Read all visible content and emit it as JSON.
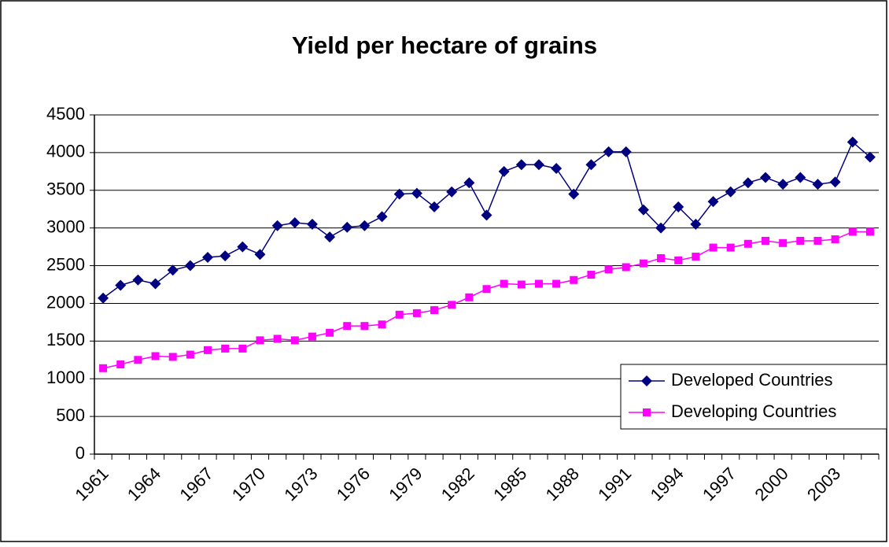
{
  "chart_data": {
    "type": "line",
    "title": "Yield per hectare of grains",
    "categories": [
      "1961",
      null,
      null,
      "1964",
      null,
      null,
      "1967",
      null,
      null,
      "1970",
      null,
      null,
      "1973",
      null,
      null,
      "1976",
      null,
      null,
      "1979",
      null,
      null,
      "1982",
      null,
      null,
      "1985",
      null,
      null,
      "1988",
      null,
      null,
      "1991",
      null,
      null,
      "1994",
      null,
      null,
      "1997",
      null,
      null,
      "2000",
      null,
      null,
      "2003",
      null,
      null
    ],
    "series": [
      {
        "name": "Developed Countries",
        "color": "#000080",
        "marker": "diamond",
        "values": [
          2070,
          2240,
          2310,
          2260,
          2440,
          2500,
          2610,
          2630,
          2750,
          2650,
          3030,
          3070,
          3050,
          2880,
          3010,
          3030,
          3150,
          3450,
          3460,
          3280,
          3480,
          3600,
          3170,
          3750,
          3840,
          3840,
          3790,
          3450,
          3840,
          4010,
          4010,
          3240,
          3000,
          3280,
          3050,
          3350,
          3480,
          3600,
          3670,
          3580,
          3670,
          3580,
          3610,
          4140,
          3940
        ]
      },
      {
        "name": "Developing Countries",
        "color": "#ff00ff",
        "marker": "square",
        "values": [
          1140,
          1190,
          1250,
          1300,
          1290,
          1320,
          1380,
          1400,
          1400,
          1510,
          1530,
          1510,
          1560,
          1610,
          1700,
          1700,
          1720,
          1850,
          1870,
          1910,
          1980,
          2080,
          2190,
          2260,
          2250,
          2260,
          2260,
          2310,
          2380,
          2450,
          2480,
          2530,
          2600,
          2570,
          2620,
          2740,
          2740,
          2790,
          2830,
          2800,
          2830,
          2830,
          2850,
          2950,
          2950
        ]
      }
    ],
    "ylim": [
      0,
      4500
    ],
    "yticks": [
      0,
      500,
      1000,
      1500,
      2000,
      2500,
      3000,
      3500,
      4000,
      4500
    ],
    "grid": true,
    "legend": "lower right"
  }
}
